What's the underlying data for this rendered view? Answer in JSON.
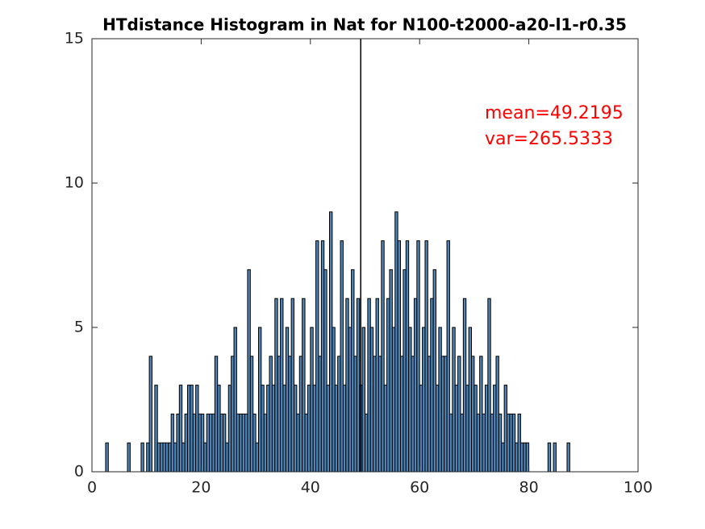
{
  "chart_data": {
    "type": "histogram",
    "title": "HTdistance Histogram in Nat for N100-t2000-a20-l1-r0.35",
    "annotations": [
      "mean=49.2195",
      "var=265.5333"
    ],
    "annotation_color": "#ff0000",
    "mean_line": 49.2195,
    "color": "#4f86b8",
    "edge_color": "#000000",
    "bins": [
      2,
      2.5,
      3,
      3.5,
      4,
      4.5,
      5,
      5.5,
      6,
      6.5,
      7,
      7.5,
      8,
      8.5,
      9,
      9.5,
      10,
      10.5,
      11,
      11.5,
      12,
      12.5,
      13,
      13.5,
      14,
      14.5,
      15,
      15.5,
      16,
      16.5,
      17,
      17.5,
      18,
      18.5,
      19,
      19.5,
      20,
      20.5,
      21,
      21.5,
      22,
      22.5,
      23,
      23.5,
      24,
      24.5,
      25,
      25.5,
      26,
      26.5,
      27,
      27.5,
      28,
      28.5,
      29,
      29.5,
      30,
      30.5,
      31,
      31.5,
      32,
      32.5,
      33,
      33.5,
      34,
      34.5,
      35,
      35.5,
      36,
      36.5,
      37,
      37.5,
      38,
      38.5,
      39,
      39.5,
      40,
      40.5,
      41,
      41.5,
      42,
      42.5,
      43,
      43.5,
      44,
      44.5,
      45,
      45.5,
      46,
      46.5,
      47,
      47.5,
      48,
      48.5,
      49,
      49.5,
      50,
      50.5,
      51,
      51.5,
      52,
      52.5,
      53,
      53.5,
      54,
      54.5,
      55,
      55.5,
      56,
      56.5,
      57,
      57.5,
      58,
      58.5,
      59,
      59.5,
      60,
      60.5,
      61,
      61.5,
      62,
      62.5,
      63,
      63.5,
      64,
      64.5,
      65,
      65.5,
      66,
      66.5,
      67,
      67.5,
      68,
      68.5,
      69,
      69.5,
      70,
      70.5,
      71,
      71.5,
      72,
      72.5,
      73,
      73.5,
      74,
      74.5,
      75,
      75.5,
      76,
      76.5,
      77,
      77.5,
      78,
      78.5,
      79,
      79.5,
      80,
      80.5,
      81,
      81.5,
      82,
      82.5,
      83,
      83.5,
      84,
      84.5,
      85,
      85.5,
      86,
      86.5,
      87,
      87.5,
      88
    ],
    "values": [
      0,
      1,
      0,
      0,
      0,
      0,
      0,
      0,
      0,
      1,
      0,
      0,
      0,
      0,
      1,
      0,
      1,
      4,
      0,
      3,
      1,
      1,
      1,
      1,
      1,
      2,
      1,
      2,
      3,
      1,
      2,
      3,
      3,
      2,
      3,
      2,
      2,
      1,
      2,
      2,
      2,
      4,
      3,
      2,
      2,
      1,
      3,
      4,
      5,
      2,
      2,
      2,
      2,
      7,
      4,
      2,
      1,
      5,
      3,
      2,
      3,
      4,
      3,
      6,
      4,
      6,
      3,
      5,
      4,
      6,
      3,
      2,
      4,
      6,
      2,
      3,
      5,
      3,
      8,
      4,
      8,
      7,
      3,
      9,
      5,
      3,
      4,
      8,
      3,
      6,
      5,
      7,
      4,
      6,
      3,
      5,
      2,
      6,
      5,
      4,
      6,
      4,
      8,
      3,
      6,
      7,
      5,
      9,
      8,
      4,
      7,
      8,
      5,
      4,
      6,
      8,
      3,
      5,
      8,
      4,
      6,
      7,
      3,
      5,
      4,
      4,
      8,
      2,
      5,
      3,
      4,
      2,
      6,
      3,
      5,
      4,
      3,
      2,
      4,
      2,
      3,
      6,
      2,
      3,
      4,
      2,
      1,
      3,
      2,
      2,
      2,
      1,
      2,
      1,
      1,
      1,
      0,
      0,
      0,
      0,
      0,
      0,
      0,
      1,
      0,
      1,
      0,
      0,
      0,
      0,
      1,
      0
    ],
    "xlim": [
      0,
      100
    ],
    "xticks": [
      0,
      20,
      40,
      60,
      80,
      100
    ],
    "ylim": [
      0,
      15
    ],
    "yticks": [
      0,
      5,
      10,
      15
    ]
  }
}
